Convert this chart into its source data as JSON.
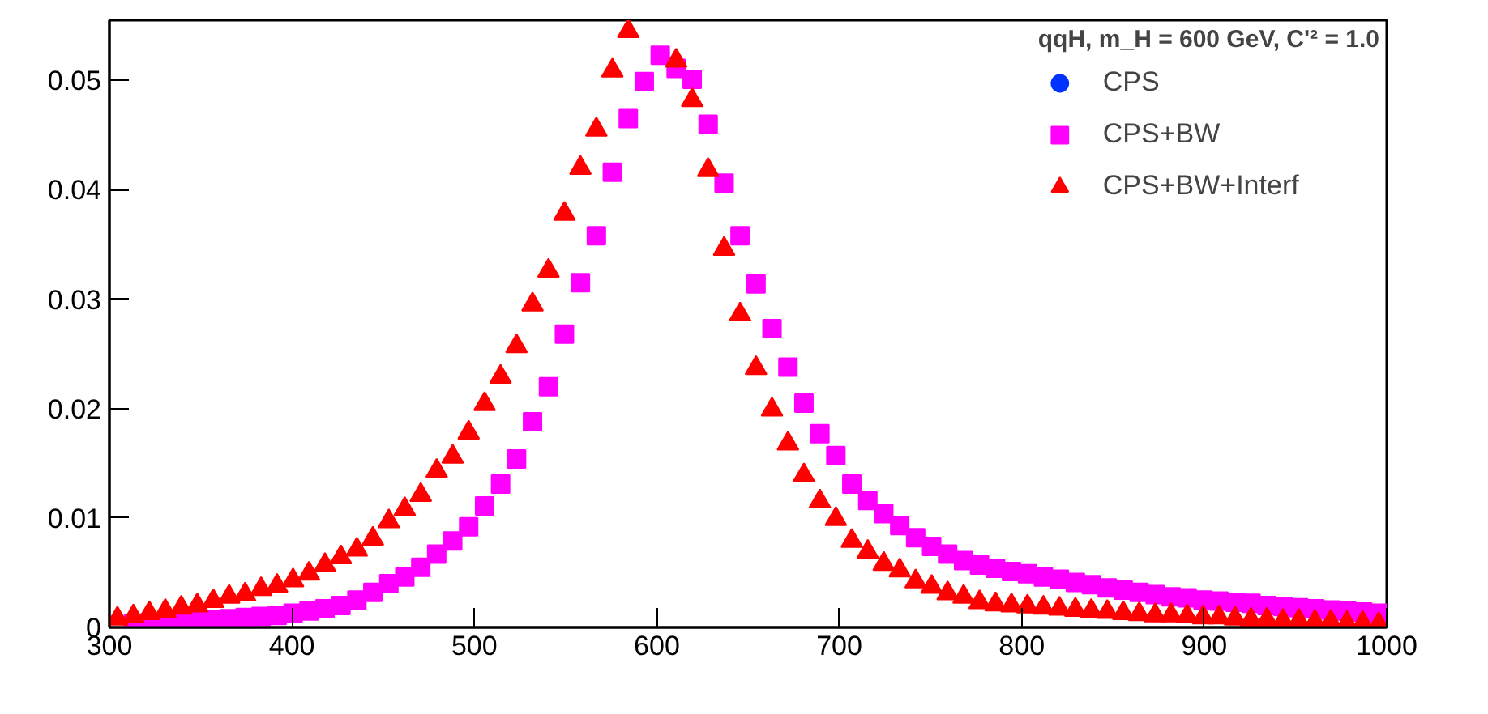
{
  "chart_data": {
    "type": "scatter",
    "legend_title": "qqH, m_H = 600 GeV, C'² = 1.0",
    "x": [
      304.375,
      313.125,
      321.875,
      330.625,
      339.375,
      348.125,
      356.875,
      365.625,
      374.375,
      383.125,
      391.875,
      400.625,
      409.375,
      418.125,
      426.875,
      435.625,
      444.375,
      453.125,
      461.875,
      470.625,
      479.375,
      488.125,
      496.875,
      505.625,
      514.375,
      523.125,
      531.875,
      540.625,
      549.375,
      558.125,
      566.875,
      575.625,
      584.375,
      593.125,
      601.875,
      610.625,
      619.375,
      628.125,
      636.875,
      645.625,
      654.375,
      663.125,
      671.875,
      680.625,
      689.375,
      698.125,
      706.875,
      715.625,
      724.375,
      733.125,
      741.875,
      750.625,
      759.375,
      768.125,
      776.875,
      785.625,
      794.375,
      803.125,
      811.875,
      820.625,
      829.375,
      838.125,
      846.875,
      855.625,
      864.375,
      873.125,
      881.875,
      890.625,
      899.375,
      908.125,
      916.875,
      925.625,
      934.375,
      943.125,
      951.875,
      960.625,
      969.375,
      978.125,
      986.875,
      995.625
    ],
    "series": [
      {
        "name": "CPS",
        "color": "#0033ff",
        "marker": "circle",
        "values": [
          null,
          null,
          null,
          null,
          null,
          null,
          null,
          null,
          null,
          null,
          null,
          null,
          null,
          null,
          null,
          null,
          null,
          null,
          null,
          null,
          null,
          null,
          null,
          null,
          null,
          null,
          null,
          null,
          null,
          null,
          null,
          null,
          null,
          null,
          null,
          null,
          null,
          null,
          null,
          null,
          null,
          null,
          null,
          null,
          null,
          null,
          null,
          null,
          null,
          null,
          null,
          null,
          null,
          null,
          null,
          null,
          null,
          null,
          null,
          null,
          null,
          null,
          null,
          null,
          null,
          null,
          null,
          null,
          null,
          null,
          null,
          null,
          null,
          null,
          null,
          null,
          null,
          null,
          null,
          null
        ]
      },
      {
        "name": "CPS+BW",
        "color": "#ff00ff",
        "marker": "square",
        "values": [
          null,
          0.0003,
          0.0004,
          0.0004,
          0.0005,
          0.0006,
          0.0007,
          0.0008,
          0.0009,
          0.001,
          0.0011,
          0.0013,
          0.0015,
          0.0017,
          0.002,
          0.0025,
          0.0032,
          0.004,
          0.0046,
          0.0055,
          0.0067,
          0.0079,
          0.0092,
          0.0111,
          0.0131,
          0.0154,
          0.0188,
          0.022,
          0.0268,
          0.0315,
          0.0358,
          0.0416,
          0.0465,
          0.0499,
          0.0523,
          0.0511,
          0.0501,
          0.046,
          0.0406,
          0.0358,
          0.0314,
          0.0273,
          0.0238,
          0.0205,
          0.0177,
          0.0157,
          0.0131,
          0.0116,
          0.0104,
          0.0093,
          0.0082,
          0.0074,
          0.0067,
          0.0061,
          0.0057,
          0.0054,
          0.0051,
          0.0049,
          0.0046,
          0.0044,
          0.0041,
          0.0039,
          0.0036,
          0.0034,
          0.0032,
          0.003,
          0.0028,
          0.0027,
          0.0025,
          0.0024,
          0.0023,
          0.0022,
          0.002,
          0.0019,
          0.0018,
          0.0017,
          0.0016,
          0.0015,
          0.0014,
          0.0013
        ]
      },
      {
        "name": "CPS+BW+Interf",
        "color": "#ff0000",
        "marker": "triangle",
        "values": [
          0.0008,
          0.001,
          0.0013,
          0.0015,
          0.0018,
          0.002,
          0.0024,
          0.0028,
          0.003,
          0.0035,
          0.0038,
          0.0043,
          0.0049,
          0.0057,
          0.0064,
          0.0071,
          0.0081,
          0.0097,
          0.0108,
          0.0121,
          0.0143,
          0.0156,
          0.0178,
          0.0204,
          0.0229,
          0.0257,
          0.0295,
          0.0326,
          0.0378,
          0.042,
          0.0455,
          0.0509,
          0.0545,
          null,
          null,
          0.0518,
          0.0482,
          0.0418,
          0.0346,
          0.0286,
          0.0237,
          0.0199,
          0.0168,
          0.0139,
          0.0115,
          0.0099,
          0.0079,
          0.0069,
          0.0058,
          0.0052,
          0.0042,
          0.0037,
          0.0031,
          0.0028,
          0.0023,
          0.0021,
          0.002,
          0.0019,
          0.0018,
          0.0017,
          0.0016,
          0.0015,
          0.0014,
          0.0013,
          0.0012,
          0.0011,
          0.0011,
          0.001,
          0.0009,
          0.0009,
          0.0008,
          0.0007,
          0.0007,
          0.0006,
          0.0006,
          0.0005,
          0.0005,
          0.0004,
          0.0004,
          0.0003
        ]
      }
    ],
    "xlim": [
      300,
      1000
    ],
    "ylim": [
      0,
      0.0555
    ],
    "xticks": [
      300,
      400,
      500,
      600,
      700,
      800,
      900,
      1000
    ],
    "yticks": [
      0,
      0.01,
      0.02,
      0.03,
      0.04,
      0.05
    ],
    "grid": false,
    "legend": "top right"
  }
}
